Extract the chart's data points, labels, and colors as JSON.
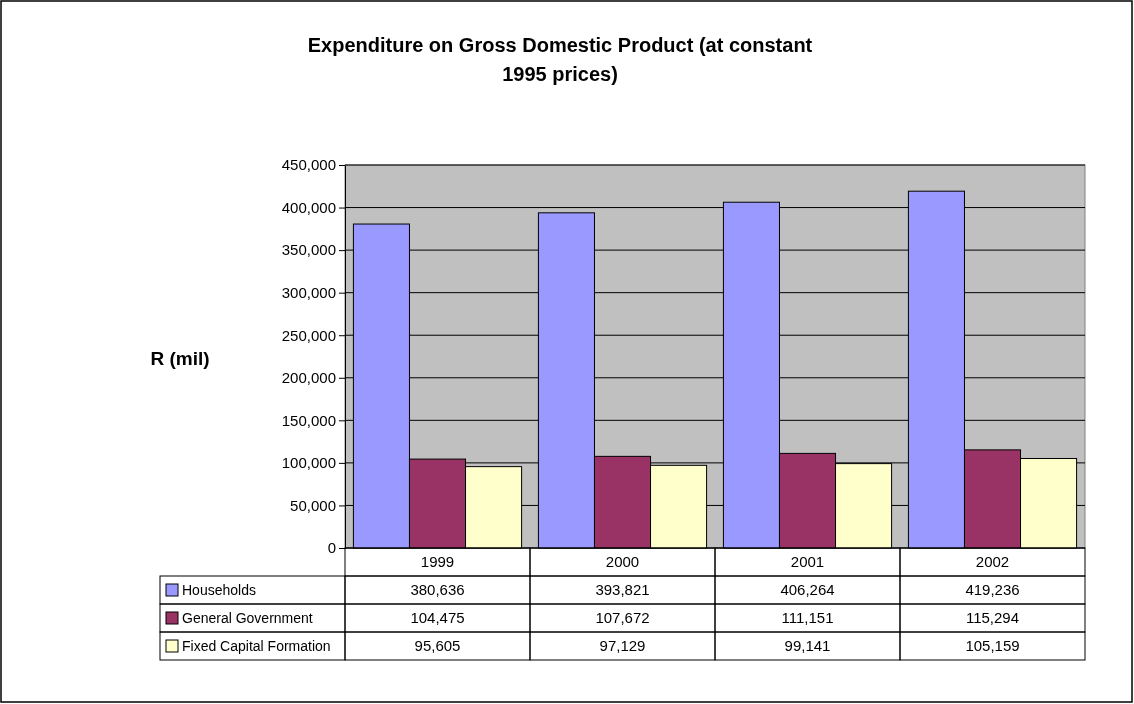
{
  "chart_data": {
    "type": "bar",
    "title": "Expenditure on Gross Domestic Product (at constant 1995 prices)",
    "ylabel": "R (mil)",
    "categories": [
      "1999",
      "2000",
      "2001",
      "2002"
    ],
    "series": [
      {
        "name": "Households",
        "color": "#9999ff",
        "values": [
          380636,
          393821,
          406264,
          419236
        ],
        "value_labels": [
          "380,636",
          "393,821",
          "406,264",
          "419,236"
        ]
      },
      {
        "name": "General Government",
        "color": "#993366",
        "values": [
          104475,
          107672,
          111151,
          115294
        ],
        "value_labels": [
          "104,475",
          "107,672",
          "111,151",
          "115,294"
        ]
      },
      {
        "name": "Fixed Capital Formation",
        "color": "#ffffcc",
        "values": [
          95605,
          97129,
          99141,
          105159
        ],
        "value_labels": [
          "95,605",
          "97,129",
          "99,141",
          "105,159"
        ]
      }
    ],
    "ylim": [
      0,
      450000
    ],
    "yticks": [
      {
        "value": 0,
        "label": "0"
      },
      {
        "value": 50000,
        "label": "50,000"
      },
      {
        "value": 100000,
        "label": "100,000"
      },
      {
        "value": 150000,
        "label": "150,000"
      },
      {
        "value": 200000,
        "label": "200,000"
      },
      {
        "value": 250000,
        "label": "250,000"
      },
      {
        "value": 300000,
        "label": "300,000"
      },
      {
        "value": 350000,
        "label": "350,000"
      },
      {
        "value": 400000,
        "label": "400,000"
      },
      {
        "value": 450000,
        "label": "450,000"
      }
    ],
    "grid": "y",
    "legend": "bottom"
  }
}
